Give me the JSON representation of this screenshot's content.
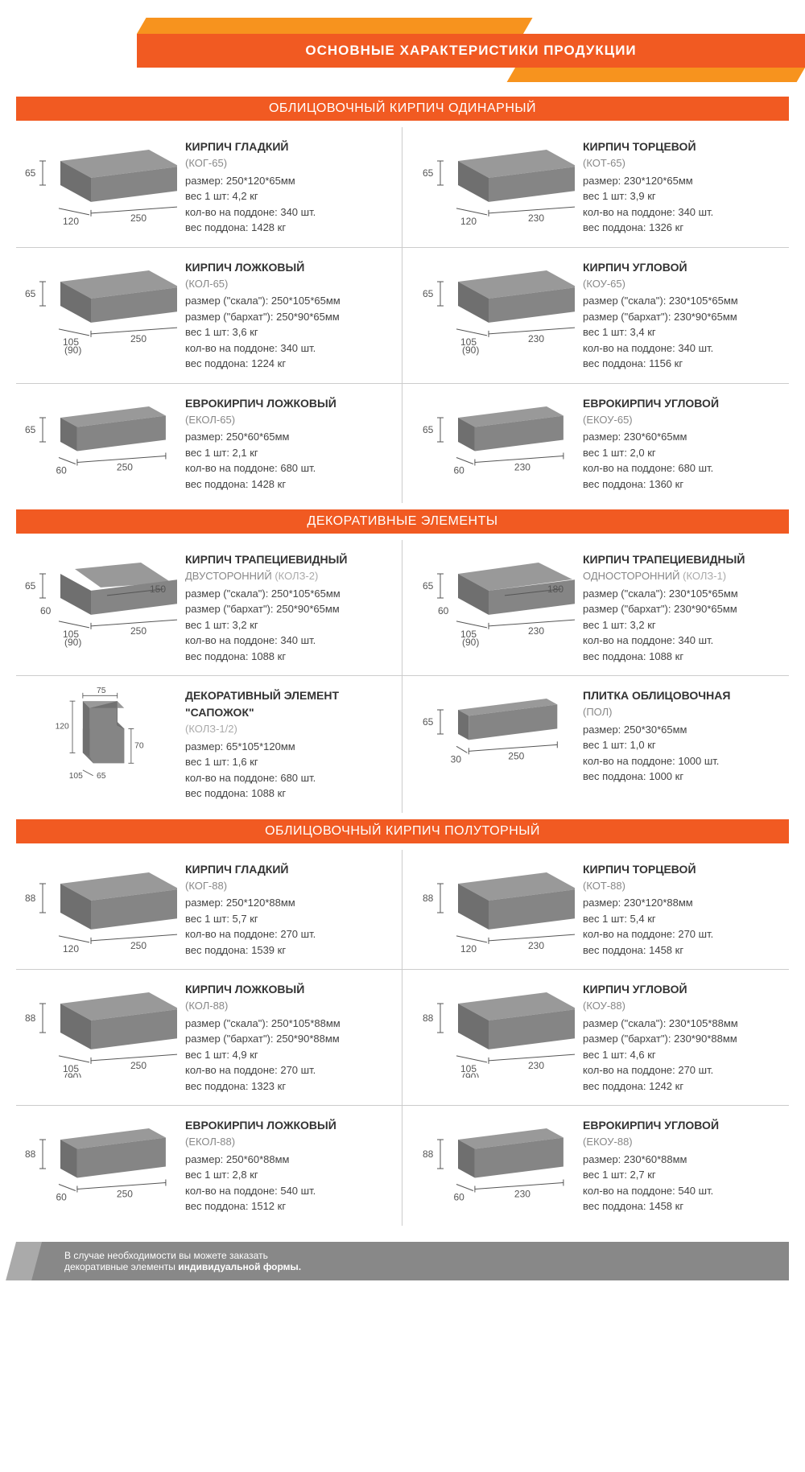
{
  "page_title": "ОСНОВНЫЕ ХАРАКТЕРИСТИКИ ПРОДУКЦИИ",
  "colors": {
    "primary": "#f15a22",
    "accent": "#f7931e",
    "brick_top": "#999999",
    "brick_left": "#6f6f6f",
    "brick_right": "#858585",
    "dim_line": "#555555",
    "text": "#333333",
    "muted": "#888888"
  },
  "footer": {
    "line1": "В случае необходимости вы можете заказать",
    "line2_a": "декоративные элементы ",
    "line2_b": "индивидуальной формы."
  },
  "sections": [
    {
      "title": "ОБЛИЦОВОЧНЫЙ КИРПИЧ ОДИНАРНЫЙ",
      "products": [
        {
          "name": "КИРПИЧ ГЛАДКИЙ",
          "code": "(КОГ-65)",
          "dims": {
            "L": "250",
            "W": "120",
            "H": "65"
          },
          "lines": [
            "размер: 250*120*65мм",
            "вес 1 шт: 4,2 кг",
            "кол-во на поддоне: 340 шт.",
            "вес поддона: 1428 кг"
          ]
        },
        {
          "name": "КИРПИЧ ТОРЦЕВОЙ",
          "code": "(КОТ-65)",
          "dims": {
            "L": "230",
            "W": "120",
            "H": "65"
          },
          "lines": [
            "размер: 230*120*65мм",
            "вес 1 шт: 3,9 кг",
            "кол-во на поддоне: 340 шт.",
            "вес поддона: 1326 кг"
          ]
        },
        {
          "name": "КИРПИЧ ЛОЖКОВЫЙ",
          "code": "(КОЛ-65)",
          "dims": {
            "L": "250",
            "W": "105",
            "W2": "(90)",
            "H": "65"
          },
          "lines": [
            "размер (\"скала\"): 250*105*65мм",
            "размер (\"бархат\"): 250*90*65мм",
            "вес 1 шт: 3,6 кг",
            "кол-во на поддоне: 340 шт.",
            "вес поддона: 1224 кг"
          ]
        },
        {
          "name": "КИРПИЧ УГЛОВОЙ",
          "code": "(КОУ-65)",
          "dims": {
            "L": "230",
            "W": "105",
            "W2": "(90)",
            "H": "65"
          },
          "lines": [
            "размер (\"скала\"): 230*105*65мм",
            "размер (\"бархат\"): 230*90*65мм",
            "вес 1 шт: 3,4 кг",
            "кол-во на поддоне: 340 шт.",
            "вес поддона: 1156 кг"
          ]
        },
        {
          "name": "ЕВРОКИРПИЧ ЛОЖКОВЫЙ",
          "code": "(ЕКОЛ-65)",
          "dims": {
            "L": "250",
            "W": "60",
            "H": "65"
          },
          "lines": [
            "размер: 250*60*65мм",
            "вес 1 шт: 2,1 кг",
            "кол-во на поддоне: 680 шт.",
            "вес поддона: 1428 кг"
          ]
        },
        {
          "name": "ЕВРОКИРПИЧ УГЛОВОЙ",
          "code": "(ЕКОУ-65)",
          "dims": {
            "L": "230",
            "W": "60",
            "H": "65"
          },
          "lines": [
            "размер: 230*60*65мм",
            "вес 1 шт: 2,0 кг",
            "кол-во на поддоне: 680 шт.",
            "вес поддона: 1360 кг"
          ]
        }
      ]
    },
    {
      "title": "ДЕКОРАТИВНЫЕ ЭЛЕМЕНТЫ",
      "products": [
        {
          "name": "КИРПИЧ ТРАПЕЦИЕВИДНЫЙ",
          "sub": "ДВУСТОРОННИЙ",
          "code_inline": "(КОЛЗ-2)",
          "dims": {
            "L": "250",
            "L2": "150",
            "W": "105",
            "W2": "(90)",
            "H": "65",
            "H2": "60"
          },
          "shape": "trap",
          "lines": [
            "размер (\"скала\"): 250*105*65мм",
            "размер (\"бархат\"): 250*90*65мм",
            "вес 1 шт: 3,2 кг",
            "кол-во на поддоне: 340 шт.",
            "вес поддона: 1088 кг"
          ]
        },
        {
          "name": "КИРПИЧ ТРАПЕЦИЕВИДНЫЙ",
          "sub": "ОДНОСТОРОННИЙ",
          "code_inline": "(КОЛЗ-1)",
          "dims": {
            "L": "230",
            "L2": "180",
            "W": "105",
            "W2": "(90)",
            "H": "65",
            "H2": "60"
          },
          "shape": "trap1",
          "lines": [
            "размер (\"скала\"): 230*105*65мм",
            "размер (\"бархат\"): 230*90*65мм",
            "вес 1 шт: 3,2 кг",
            "кол-во на поддоне: 340 шт.",
            "вес поддона: 1088 кг"
          ]
        },
        {
          "name": "ДЕКОРАТИВНЫЙ ЭЛЕМЕНТ \"САПОЖОК\"",
          "code_inline": "(КОЛЗ-1/2)",
          "dims": {
            "L": "75",
            "W": "105",
            "H": "120",
            "H2": "70",
            "B": "65"
          },
          "shape": "boot",
          "lines": [
            "размер: 65*105*120мм",
            "вес 1 шт: 1,6 кг",
            "кол-во на поддоне: 680 шт.",
            "вес поддона: 1088 кг"
          ]
        },
        {
          "name": "ПЛИТКА ОБЛИЦОВОЧНАЯ",
          "code": "(ПОЛ)",
          "dims": {
            "L": "250",
            "W": "30",
            "H": "65"
          },
          "shape": "thin",
          "lines": [
            "размер: 250*30*65мм",
            "вес 1 шт: 1,0 кг",
            "кол-во на поддоне: 1000 шт.",
            "вес поддона: 1000 кг"
          ]
        }
      ]
    },
    {
      "title": "ОБЛИЦОВОЧНЫЙ КИРПИЧ ПОЛУТОРНЫЙ",
      "products": [
        {
          "name": "КИРПИЧ ГЛАДКИЙ",
          "code": "(КОГ-88)",
          "dims": {
            "L": "250",
            "W": "120",
            "H": "88"
          },
          "lines": [
            "размер: 250*120*88мм",
            "вес 1 шт: 5,7 кг",
            "кол-во на поддоне: 270 шт.",
            "вес поддона: 1539 кг"
          ]
        },
        {
          "name": "КИРПИЧ ТОРЦЕВОЙ",
          "code": "(КОТ-88)",
          "dims": {
            "L": "230",
            "W": "120",
            "H": "88"
          },
          "lines": [
            "размер: 230*120*88мм",
            "вес 1 шт: 5,4 кг",
            "кол-во на поддоне: 270 шт.",
            "вес поддона: 1458 кг"
          ]
        },
        {
          "name": "КИРПИЧ ЛОЖКОВЫЙ",
          "code": "(КОЛ-88)",
          "dims": {
            "L": "250",
            "W": "105",
            "W2": "(90)",
            "H": "88"
          },
          "lines": [
            "размер (\"скала\"): 250*105*88мм",
            "размер (\"бархат\"): 250*90*88мм",
            "вес 1 шт: 4,9 кг",
            "кол-во на поддоне: 270 шт.",
            "вес поддона: 1323 кг"
          ]
        },
        {
          "name": "КИРПИЧ УГЛОВОЙ",
          "code": "(КОУ-88)",
          "dims": {
            "L": "230",
            "W": "105",
            "W2": "(90)",
            "H": "88"
          },
          "lines": [
            "размер (\"скала\"): 230*105*88мм",
            "размер (\"бархат\"): 230*90*88мм",
            "вес 1 шт: 4,6 кг",
            "кол-во на поддоне: 270 шт.",
            "вес поддона: 1242 кг"
          ]
        },
        {
          "name": "ЕВРОКИРПИЧ ЛОЖКОВЫЙ",
          "code": "(ЕКОЛ-88)",
          "dims": {
            "L": "250",
            "W": "60",
            "H": "88"
          },
          "lines": [
            "размер: 250*60*88мм",
            "вес 1 шт: 2,8 кг",
            "кол-во на поддоне: 540 шт.",
            "вес поддона: 1512 кг"
          ]
        },
        {
          "name": "ЕВРОКИРПИЧ УГЛОВОЙ",
          "code": "(ЕКОУ-88)",
          "dims": {
            "L": "230",
            "W": "60",
            "H": "88"
          },
          "lines": [
            "размер: 230*60*88мм",
            "вес 1 шт: 2,7 кг",
            "кол-во на поддоне: 540 шт.",
            "вес поддона: 1458 кг"
          ]
        }
      ]
    }
  ]
}
